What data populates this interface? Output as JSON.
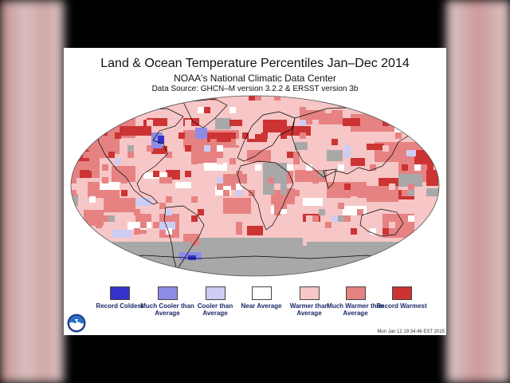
{
  "title": "Land & Ocean Temperature Percentiles Jan–Dec 2014",
  "subtitle": "NOAA's National Climatic Data Center",
  "source": "Data Source: GHCN–M version 3.2.2 & ERSST version 3b",
  "legend": [
    {
      "label": "Record Coldest",
      "color": "#3333cc"
    },
    {
      "label": "Much Cooler than Average",
      "color": "#8c8ce6"
    },
    {
      "label": "Cooler than Average",
      "color": "#ccccf5"
    },
    {
      "label": "Near Average",
      "color": "#ffffff"
    },
    {
      "label": "Warmer than Average",
      "color": "#f7c6c6"
    },
    {
      "label": "Much Warmer than Average",
      "color": "#e68282"
    },
    {
      "label": "Record Warmest",
      "color": "#cc3333"
    }
  ],
  "map": {
    "ocean_base_color": "#f7c6c6",
    "no_data_color": "#a8a8a8",
    "border_color": "#000000"
  },
  "timestamp": "Mon Jan 12 19:34:46 EST 2015",
  "logo": {
    "name": "noaa-logo",
    "text": "NOAA"
  }
}
